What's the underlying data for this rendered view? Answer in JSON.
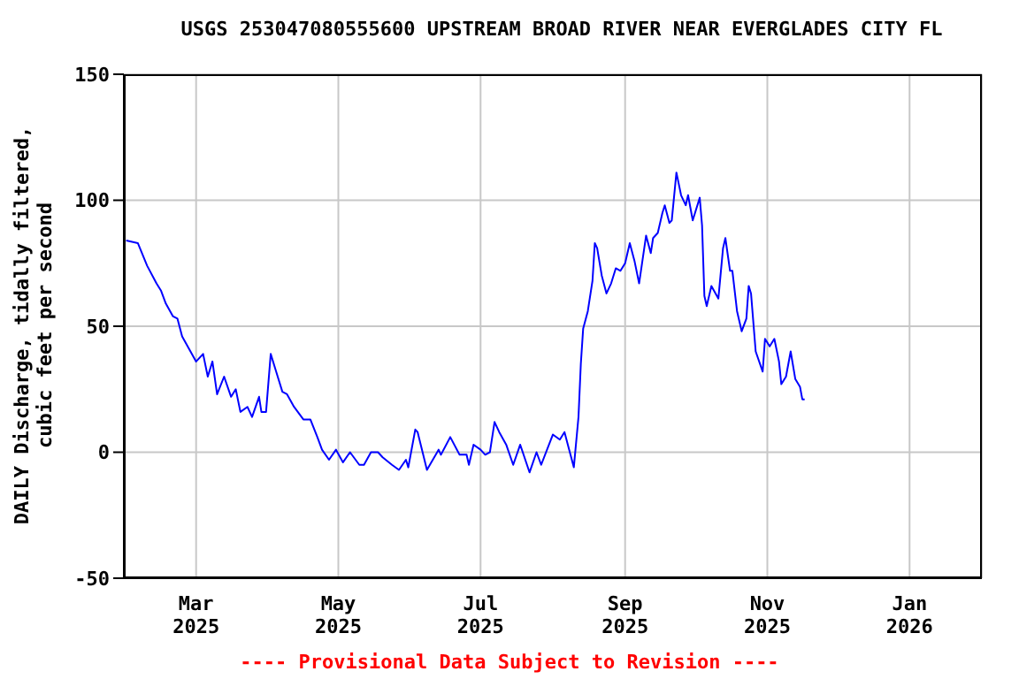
{
  "chart_data": {
    "type": "line",
    "title": "USGS 253047080555600 UPSTREAM BROAD RIVER NEAR EVERGLADES CITY FL",
    "ylabel": "DAILY Discharge, tidally filtered,\ncubic feet per second",
    "annotations": [
      "---- Provisional Data Subject to Revision ----"
    ],
    "x": [
      "2025-01-30",
      "2025-02-04",
      "2025-02-08",
      "2025-02-12",
      "2025-02-14",
      "2025-02-16",
      "2025-02-19",
      "2025-02-21",
      "2025-02-23",
      "2025-02-26",
      "2025-03-01",
      "2025-03-04",
      "2025-03-06",
      "2025-03-08",
      "2025-03-10",
      "2025-03-13",
      "2025-03-16",
      "2025-03-18",
      "2025-03-20",
      "2025-03-23",
      "2025-03-25",
      "2025-03-28",
      "2025-03-29",
      "2025-03-31",
      "2025-04-02",
      "2025-04-04",
      "2025-04-07",
      "2025-04-09",
      "2025-04-12",
      "2025-04-16",
      "2025-04-19",
      "2025-04-22",
      "2025-04-24",
      "2025-04-27",
      "2025-04-30",
      "2025-05-03",
      "2025-05-06",
      "2025-05-10",
      "2025-05-12",
      "2025-05-15",
      "2025-05-18",
      "2025-05-20",
      "2025-05-24",
      "2025-05-27",
      "2025-05-30",
      "2025-05-31",
      "2025-06-03",
      "2025-06-04",
      "2025-06-08",
      "2025-06-13",
      "2025-06-14",
      "2025-06-18",
      "2025-06-22",
      "2025-06-25",
      "2025-06-26",
      "2025-06-28",
      "2025-07-01",
      "2025-07-03",
      "2025-07-05",
      "2025-07-07",
      "2025-07-09",
      "2025-07-12",
      "2025-07-15",
      "2025-07-18",
      "2025-07-22",
      "2025-07-25",
      "2025-07-27",
      "2025-08-01",
      "2025-08-04",
      "2025-08-06",
      "2025-08-10",
      "2025-08-12",
      "2025-08-13",
      "2025-08-14",
      "2025-08-16",
      "2025-08-18",
      "2025-08-19",
      "2025-08-20",
      "2025-08-22",
      "2025-08-24",
      "2025-08-26",
      "2025-08-28",
      "2025-08-30",
      "2025-09-01",
      "2025-09-03",
      "2025-09-05",
      "2025-09-07",
      "2025-09-10",
      "2025-09-12",
      "2025-09-13",
      "2025-09-15",
      "2025-09-17",
      "2025-09-18",
      "2025-09-20",
      "2025-09-21",
      "2025-09-23",
      "2025-09-25",
      "2025-09-27",
      "2025-09-28",
      "2025-09-30",
      "2025-10-03",
      "2025-10-04",
      "2025-10-05",
      "2025-10-06",
      "2025-10-08",
      "2025-10-11",
      "2025-10-13",
      "2025-10-14",
      "2025-10-16",
      "2025-10-17",
      "2025-10-19",
      "2025-10-21",
      "2025-10-23",
      "2025-10-24",
      "2025-10-25",
      "2025-10-27",
      "2025-10-30",
      "2025-10-31",
      "2025-11-02",
      "2025-11-04",
      "2025-11-06",
      "2025-11-07",
      "2025-11-09",
      "2025-11-11",
      "2025-11-13",
      "2025-11-15",
      "2025-11-16",
      "2025-11-17"
    ],
    "series": [
      {
        "color": "#0000ff",
        "values": [
          84,
          83,
          74,
          67,
          64,
          59,
          54,
          53,
          46,
          41,
          36,
          39,
          30,
          36,
          23,
          30,
          22,
          25,
          16,
          18,
          14,
          22,
          16,
          16,
          39,
          33,
          24,
          23,
          18,
          13,
          13,
          6,
          1,
          -3,
          1,
          -4,
          0,
          -5,
          -5,
          0,
          0,
          -2,
          -5,
          -7,
          -3,
          -6,
          9,
          8,
          -7,
          1,
          -1,
          6,
          -1,
          -1,
          -5,
          3,
          1,
          -1,
          0,
          12,
          8,
          3,
          -5,
          3,
          -8,
          0,
          -5,
          7,
          5,
          8,
          -6,
          14,
          35,
          49,
          56,
          68,
          83,
          81,
          70,
          63,
          67,
          73,
          72,
          75,
          83,
          76,
          67,
          86,
          79,
          85,
          87,
          95,
          98,
          91,
          92,
          111,
          102,
          98,
          102,
          92,
          101,
          90,
          62,
          58,
          66,
          61,
          81,
          85,
          72,
          72,
          56,
          48,
          53,
          66,
          63,
          40,
          32,
          45,
          42,
          45,
          36,
          27,
          30,
          40,
          29,
          26,
          21,
          21
        ]
      }
    ],
    "xlim": [
      "2025-01-29",
      "2026-02-01"
    ],
    "xticks": [
      {
        "value": "2025-03-01",
        "label": "Mar\n2025"
      },
      {
        "value": "2025-05-01",
        "label": "May\n2025"
      },
      {
        "value": "2025-07-01",
        "label": "Jul\n2025"
      },
      {
        "value": "2025-09-01",
        "label": "Sep\n2025"
      },
      {
        "value": "2025-11-01",
        "label": "Nov\n2025"
      },
      {
        "value": "2026-01-01",
        "label": "Jan\n2026"
      }
    ],
    "ylim": [
      -50,
      150
    ],
    "yticks": [
      -50,
      0,
      50,
      100,
      150
    ],
    "grid": true,
    "marker": "none",
    "line_style": "solid"
  }
}
